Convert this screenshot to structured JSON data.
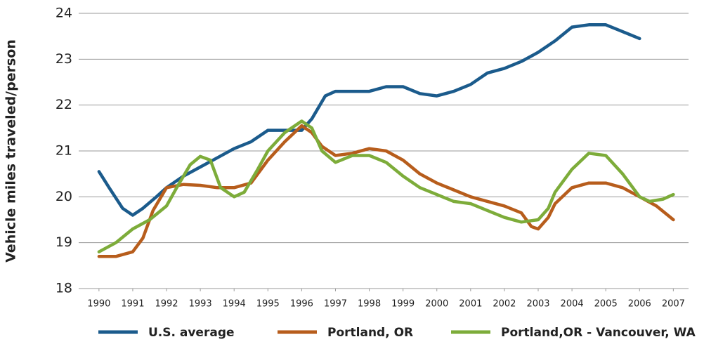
{
  "chart_data": {
    "type": "line",
    "y_label": "Vehicle miles traveled/person",
    "xlim": [
      1989.4,
      2007.45
    ],
    "ylim": [
      18,
      24
    ],
    "xticks": [
      1990,
      1991,
      1992,
      1993,
      1994,
      1995,
      1996,
      1997,
      1998,
      1999,
      2000,
      2001,
      2002,
      2003,
      2004,
      2005,
      2006,
      2007
    ],
    "yticks": [
      18,
      19,
      20,
      21,
      22,
      23,
      24
    ],
    "grid": true,
    "legend": "bottom",
    "series": [
      {
        "name": "U.S. average",
        "color": "#1b5b8c",
        "x": [
          1990,
          1990.3,
          1990.7,
          1991,
          1991.3,
          1991.7,
          1992,
          1992.5,
          1993,
          1993.5,
          1994,
          1994.5,
          1995,
          1995.5,
          1996,
          1996.3,
          1996.7,
          1997,
          1997.5,
          1998,
          1998.5,
          1999,
          1999.5,
          2000,
          2000.5,
          2001,
          2001.5,
          2002,
          2002.5,
          2003,
          2003.5,
          2004,
          2004.5,
          2005,
          2005.5,
          2006
        ],
        "values": [
          20.55,
          20.2,
          19.75,
          19.6,
          19.75,
          20.0,
          20.2,
          20.45,
          20.65,
          20.85,
          21.05,
          21.2,
          21.45,
          21.45,
          21.45,
          21.7,
          22.2,
          22.3,
          22.3,
          22.3,
          22.4,
          22.4,
          22.25,
          22.2,
          22.3,
          22.45,
          22.7,
          22.8,
          22.95,
          23.15,
          23.4,
          23.7,
          23.75,
          23.75,
          23.6,
          23.45
        ]
      },
      {
        "name": "Portland, OR",
        "color": "#b75d1c",
        "x": [
          1990,
          1990.5,
          1991,
          1991.3,
          1991.6,
          1992,
          1992.5,
          1993,
          1993.5,
          1994,
          1994.5,
          1995,
          1995.5,
          1996,
          1996.3,
          1996.6,
          1997,
          1997.5,
          1998,
          1998.5,
          1999,
          1999.5,
          2000,
          2000.5,
          2001,
          2001.5,
          2002,
          2002.5,
          2002.8,
          2003,
          2003.3,
          2003.5,
          2004,
          2004.5,
          2005,
          2005.5,
          2006,
          2006.5,
          2007
        ],
        "values": [
          18.7,
          18.7,
          18.8,
          19.1,
          19.7,
          20.2,
          20.27,
          20.25,
          20.2,
          20.2,
          20.3,
          20.8,
          21.2,
          21.55,
          21.4,
          21.1,
          20.9,
          20.95,
          21.05,
          21.0,
          20.8,
          20.5,
          20.3,
          20.15,
          20.0,
          19.9,
          19.8,
          19.65,
          19.35,
          19.3,
          19.55,
          19.85,
          20.2,
          20.3,
          20.3,
          20.2,
          20.0,
          19.8,
          19.5
        ]
      },
      {
        "name": "Portland,OR - Vancouver, WA",
        "color": "#7dac3a",
        "x": [
          1990,
          1990.5,
          1991,
          1991.5,
          1992,
          1992.3,
          1992.7,
          1993,
          1993.3,
          1993.6,
          1994,
          1994.3,
          1994.7,
          1995,
          1995.5,
          1996,
          1996.3,
          1996.6,
          1997,
          1997.5,
          1998,
          1998.5,
          1999,
          1999.5,
          2000,
          2000.5,
          2001,
          2001.5,
          2002,
          2002.5,
          2003,
          2003.3,
          2003.5,
          2004,
          2004.5,
          2005,
          2005.5,
          2006,
          2006.3,
          2006.7,
          2007
        ],
        "values": [
          18.8,
          19.0,
          19.3,
          19.5,
          19.8,
          20.2,
          20.7,
          20.88,
          20.8,
          20.2,
          20.0,
          20.1,
          20.6,
          21.0,
          21.4,
          21.65,
          21.5,
          21.0,
          20.75,
          20.9,
          20.9,
          20.75,
          20.45,
          20.2,
          20.05,
          19.9,
          19.85,
          19.7,
          19.55,
          19.45,
          19.5,
          19.75,
          20.1,
          20.6,
          20.95,
          20.9,
          20.5,
          20.0,
          19.9,
          19.95,
          20.05
        ]
      }
    ]
  }
}
